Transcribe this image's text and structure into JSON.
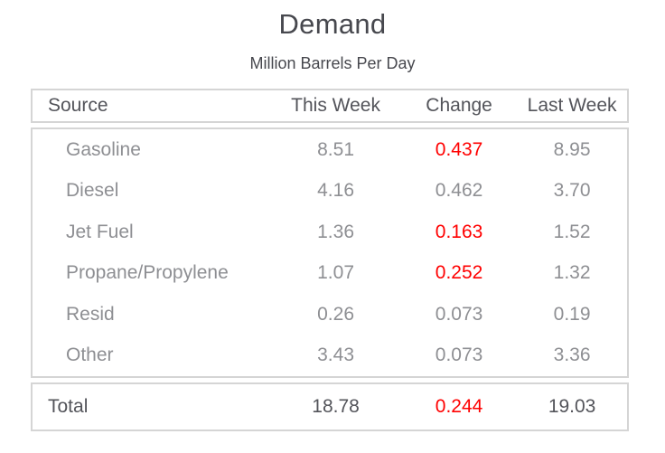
{
  "page": {
    "title": "Demand",
    "subtitle": "Million Barrels Per Day"
  },
  "colors": {
    "accent_red": "#ff0000",
    "title_text": "#47484e",
    "header_text": "#53545a",
    "body_text": "#8e8f93",
    "border": "#d5d5d5"
  },
  "table": {
    "columns": {
      "source": "Source",
      "this_week": "This Week",
      "change": "Change",
      "last_week": "Last Week"
    },
    "rows": [
      {
        "source": "Gasoline",
        "this_week": "8.51",
        "change": "0.437",
        "change_negative": true,
        "last_week": "8.95"
      },
      {
        "source": "Diesel",
        "this_week": "4.16",
        "change": "0.462",
        "change_negative": false,
        "last_week": "3.70"
      },
      {
        "source": "Jet Fuel",
        "this_week": "1.36",
        "change": "0.163",
        "change_negative": true,
        "last_week": "1.52"
      },
      {
        "source": "Propane/Propylene",
        "this_week": "1.07",
        "change": "0.252",
        "change_negative": true,
        "last_week": "1.32"
      },
      {
        "source": "Resid",
        "this_week": "0.26",
        "change": "0.073",
        "change_negative": false,
        "last_week": "0.19"
      },
      {
        "source": "Other",
        "this_week": "3.43",
        "change": "0.073",
        "change_negative": false,
        "last_week": "3.36"
      }
    ],
    "total": {
      "source": "Total",
      "this_week": "18.78",
      "change": "0.244",
      "change_negative": true,
      "last_week": "19.03"
    }
  },
  "chart_data": {
    "type": "table",
    "title": "Demand",
    "subtitle": "Million Barrels Per Day",
    "columns": [
      "Source",
      "This Week",
      "Change",
      "Last Week"
    ],
    "rows": [
      [
        "Gasoline",
        8.51,
        0.437,
        8.95
      ],
      [
        "Diesel",
        4.16,
        0.462,
        3.7
      ],
      [
        "Jet Fuel",
        1.36,
        0.163,
        1.52
      ],
      [
        "Propane/Propylene",
        1.07,
        0.252,
        1.32
      ],
      [
        "Resid",
        0.26,
        0.073,
        0.19
      ],
      [
        "Other",
        3.43,
        0.073,
        3.36
      ],
      [
        "Total",
        18.78,
        0.244,
        19.03
      ]
    ],
    "red_change_rows": [
      "Gasoline",
      "Jet Fuel",
      "Propane/Propylene",
      "Total"
    ],
    "layout_hints": "header, body and total are three stacked light-gray bordered boxes; numeric columns center-aligned; red change value indicates decline vs last week"
  }
}
